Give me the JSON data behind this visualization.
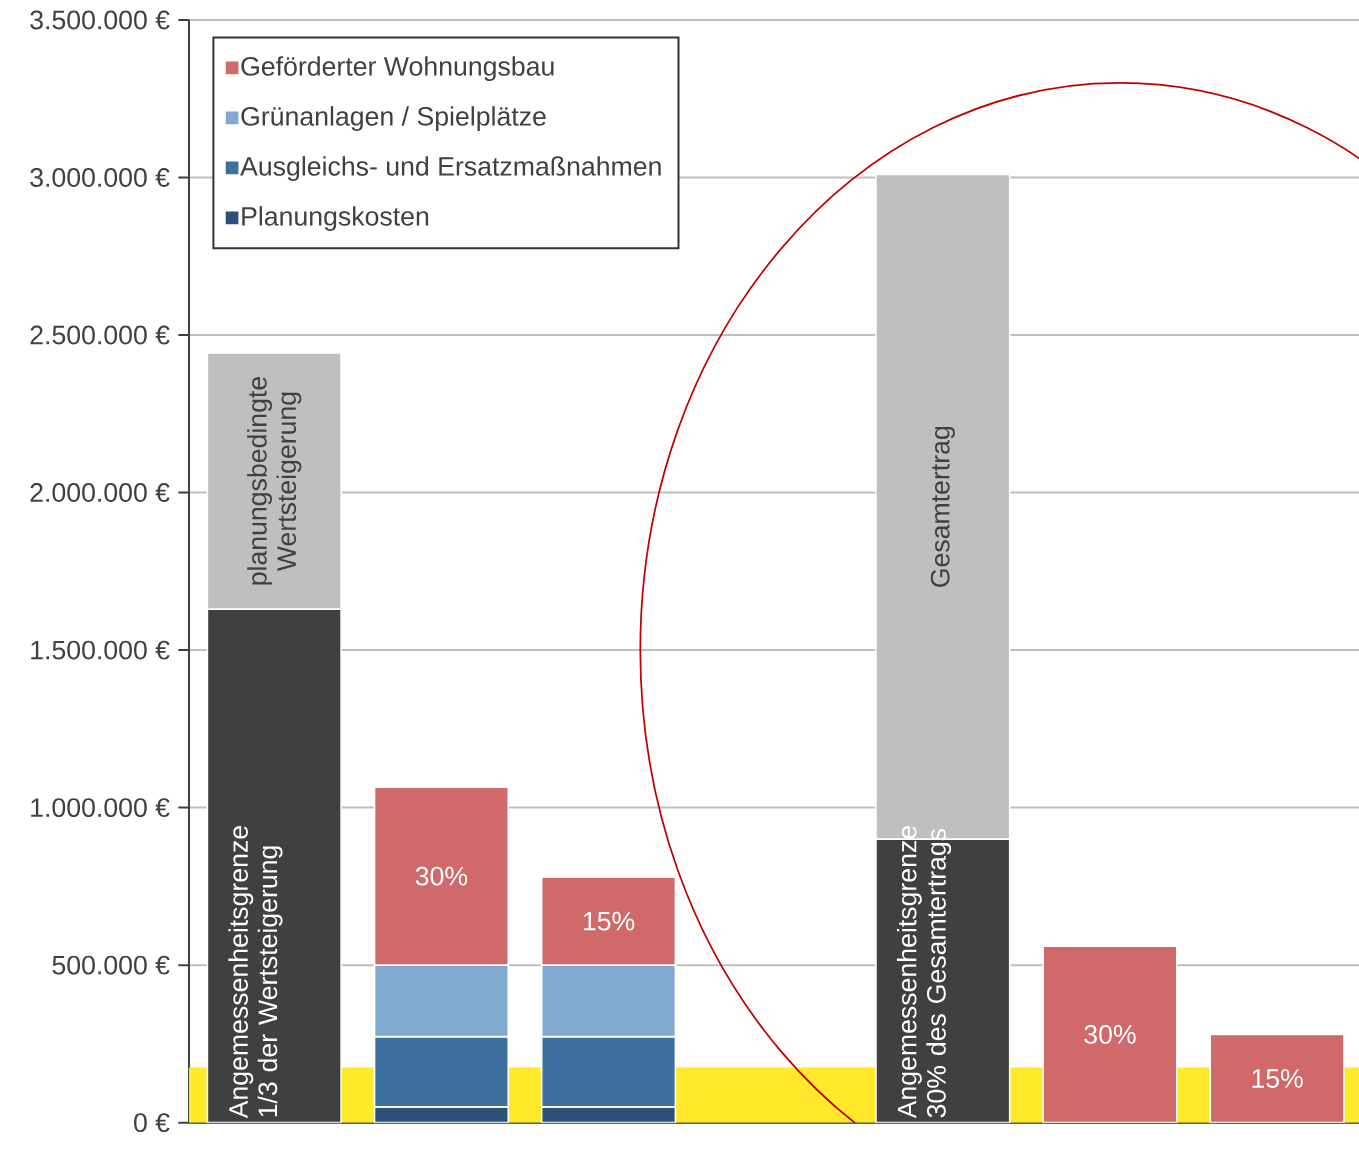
{
  "chart_data": {
    "type": "bar",
    "stacked": true,
    "categories": [
      null,
      null,
      null,
      null,
      null,
      null,
      null
    ],
    "series": [
      {
        "color": "#404040",
        "values": [
          1630000,
          null,
          null,
          null,
          900000,
          null,
          null
        ],
        "value_labels": [
          "Angemessenheitsgrenze 1/3 der Wertsteigerung",
          null,
          null,
          null,
          "Angemessenheitsgrenze 30% des Gesamtertrags",
          null,
          null
        ]
      },
      {
        "color": "#bfbfbf",
        "values": [
          813000,
          null,
          null,
          null,
          2110000,
          null,
          null
        ],
        "value_labels": [
          "planungsbedingte Wertsteigerung",
          null,
          null,
          null,
          "Gesamtertrag",
          null,
          null
        ]
      },
      {
        "name": "Planungskosten",
        "color": "#2d5078",
        "values": [
          null,
          50000,
          50000,
          null,
          null,
          null,
          null
        ]
      },
      {
        "name": "Ausgleichs- und Ersatzmaßnahmen",
        "color": "#3d6f9f",
        "values": [
          null,
          223000,
          223000,
          null,
          null,
          null,
          null
        ]
      },
      {
        "name": "Grünanlagen / Spielplätze",
        "color": "#80aad0",
        "values": [
          null,
          227000,
          227000,
          null,
          null,
          null,
          null
        ]
      },
      {
        "name": "Geförderter Wohnungsbau",
        "color": "#cf696a",
        "values": [
          null,
          565000,
          279000,
          null,
          null,
          560000,
          280000
        ]
      }
    ],
    "annotations": [
      "30%",
      "15%",
      "30%",
      "15%"
    ],
    "ylim": [
      0,
      3500000
    ],
    "yticks": [
      {
        "value": 0,
        "label": "0 €"
      },
      {
        "value": 500000,
        "label": "500.000 €"
      },
      {
        "value": 1000000,
        "label": "1.000.000 €"
      },
      {
        "value": 1500000,
        "label": "1.500.000 €"
      },
      {
        "value": 2000000,
        "label": "2.000.000 €"
      },
      {
        "value": 2500000,
        "label": "2.500.000 €"
      },
      {
        "value": 3000000,
        "label": "3.000.000 €"
      },
      {
        "value": 3500000,
        "label": "3.500.000 €"
      }
    ],
    "grid": "y",
    "legend": "top left",
    "bands": [
      {
        "axis": "y",
        "from": 0,
        "to": 175000,
        "color": "#ffe92a"
      }
    ]
  }
}
